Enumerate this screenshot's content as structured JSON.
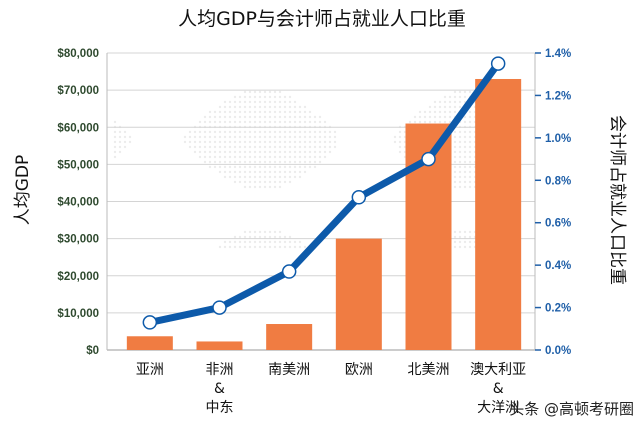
{
  "chart_data": {
    "type": "bar+line",
    "title": "人均GDP与会计师占就业人口比重",
    "ylabel_left": "人均GDP",
    "ylabel_right": "会计师占就业人口比重",
    "categories": [
      [
        "亚洲"
      ],
      [
        "非洲",
        "&",
        "中东"
      ],
      [
        "南美洲"
      ],
      [
        "欧洲"
      ],
      [
        "北美洲"
      ],
      [
        "澳大利亚",
        "&",
        "大洋洲"
      ]
    ],
    "left_axis": {
      "range": [
        0,
        80000
      ],
      "ticks": [
        "$0",
        "$10,000",
        "$20,000",
        "$30,000",
        "$40,000",
        "$50,000",
        "$60,000",
        "$70,000",
        "$80,000"
      ]
    },
    "right_axis": {
      "range": [
        0,
        1.4
      ],
      "ticks": [
        "0.0%",
        "0.2%",
        "0.4%",
        "0.6%",
        "0.8%",
        "1.0%",
        "1.2%",
        "1.4%"
      ]
    },
    "series": [
      {
        "type": "bar",
        "axis": "left",
        "color": "#f07c42",
        "values": [
          3700,
          2300,
          7000,
          30000,
          61000,
          73000
        ]
      },
      {
        "type": "line",
        "axis": "right",
        "color": "#0d5aaa",
        "values": [
          0.13,
          0.2,
          0.37,
          0.72,
          0.9,
          1.35
        ]
      }
    ],
    "grid": true
  },
  "watermark": "头条 @高顿考研圈"
}
